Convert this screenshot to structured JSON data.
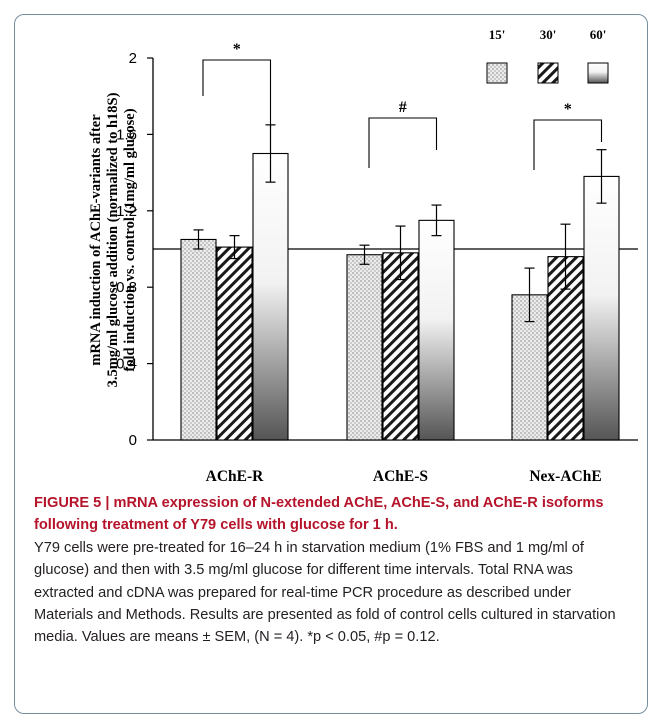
{
  "chart_data": {
    "type": "bar",
    "ylabel_lines": [
      "mRNA induction of AChE-variants after",
      "3.5mg/ml glucose addition (normalized to h18S)",
      "fold induction vs. control (1mg/ml glucose)"
    ],
    "categories": [
      "AChE-R",
      "AChE-S",
      "Nex-AChE"
    ],
    "ylim": [
      0,
      2
    ],
    "yticks": [
      "0",
      "0.4",
      "0.8",
      "1.2",
      "1.6",
      "2"
    ],
    "ytick_values": [
      0,
      0.4,
      0.8,
      1.2,
      1.6,
      2.0
    ],
    "reference_line": 1.0,
    "legend_position": "top-right",
    "series": [
      {
        "name": "15'",
        "pattern": "dotted",
        "values": [
          1.05,
          0.97,
          0.76
        ],
        "errors": [
          0.05,
          0.05,
          0.14
        ]
      },
      {
        "name": "30'",
        "pattern": "hatched",
        "values": [
          1.01,
          0.98,
          0.96
        ],
        "errors": [
          0.06,
          0.14,
          0.17
        ]
      },
      {
        "name": "60'",
        "pattern": "gradient",
        "values": [
          1.5,
          1.15,
          1.38
        ],
        "errors": [
          0.15,
          0.08,
          0.14
        ]
      }
    ],
    "significance": [
      {
        "category": "AChE-R",
        "label": "*",
        "from_series": "15'",
        "to_series": "60'"
      },
      {
        "category": "AChE-S",
        "label": "#",
        "from_series": "15'",
        "to_series": "60'"
      },
      {
        "category": "Nex-AChE",
        "label": "*",
        "from_series": "15'",
        "to_series": "60'"
      }
    ]
  },
  "caption": {
    "title": "FIGURE 5 | mRNA expression of N-extended AChE, AChE-S, and AChE-R isoforms following treatment of Y79 cells with glucose for 1 h.",
    "body": "Y79 cells were pre-treated for 16–24 h in starvation medium (1% FBS and 1 mg/ml of glucose) and then with 3.5 mg/ml glucose for different time intervals. Total RNA was extracted and cDNA was prepared for real-time PCR procedure as described under Materials and Methods. Results are presented as fold of control cells cultured in starvation media. Values are means ± SEM, (N = 4). *p < 0.05, #p = 0.12."
  },
  "colors": {
    "bar_stroke": "#000000",
    "dotted_fill": "#e6e6e6",
    "gradient_top": "#ffffff",
    "gradient_bottom": "#5a5a5a",
    "caption_title": "#b5142b",
    "caption_text": "#231f20",
    "figure_border": "#7a8f9e"
  }
}
